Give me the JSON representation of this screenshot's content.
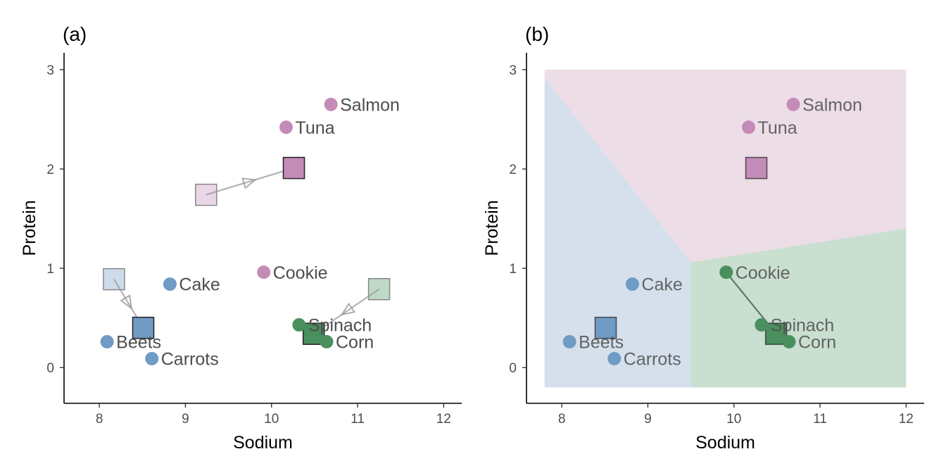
{
  "chart_data": [
    {
      "type": "scatter",
      "panel_label": "(a)",
      "xlabel": "Sodium",
      "ylabel": "Protein",
      "xlim": [
        7.59,
        12.21
      ],
      "ylim": [
        -0.36,
        3.17
      ],
      "xticks": [
        "8",
        "9",
        "10",
        "11",
        "12"
      ],
      "yticks": [
        "0",
        "1",
        "2",
        "3"
      ],
      "grid": false,
      "points": [
        {
          "label": "Salmon",
          "x": 10.69,
          "y": 2.65,
          "cluster": "purple"
        },
        {
          "label": "Tuna",
          "x": 10.17,
          "y": 2.42,
          "cluster": "purple"
        },
        {
          "label": "Cookie",
          "x": 9.91,
          "y": 0.96,
          "cluster": "purple"
        },
        {
          "label": "Cake",
          "x": 8.82,
          "y": 0.84,
          "cluster": "blue"
        },
        {
          "label": "Beets",
          "x": 8.09,
          "y": 0.26,
          "cluster": "blue"
        },
        {
          "label": "Carrots",
          "x": 8.61,
          "y": 0.09,
          "cluster": "blue"
        },
        {
          "label": "Spinach",
          "x": 10.32,
          "y": 0.43,
          "cluster": "green"
        },
        {
          "label": "Corn",
          "x": 10.64,
          "y": 0.26,
          "cluster": "green"
        }
      ],
      "centroids": [
        {
          "cluster": "purple",
          "old": [
            9.24,
            1.74
          ],
          "new": [
            10.26,
            2.01
          ]
        },
        {
          "cluster": "blue",
          "old": [
            8.17,
            0.89
          ],
          "new": [
            8.51,
            0.4
          ]
        },
        {
          "cluster": "green",
          "old": [
            11.25,
            0.79
          ],
          "new": [
            10.49,
            0.34
          ]
        }
      ]
    },
    {
      "type": "scatter",
      "panel_label": "(b)",
      "xlabel": "Sodium",
      "ylabel": "Protein",
      "xlim": [
        7.59,
        12.21
      ],
      "ylim": [
        -0.36,
        3.17
      ],
      "xticks": [
        "8",
        "9",
        "10",
        "11",
        "12"
      ],
      "yticks": [
        "0",
        "1",
        "2",
        "3"
      ],
      "grid": false,
      "points": [
        {
          "label": "Salmon",
          "x": 10.69,
          "y": 2.65,
          "cluster": "purple"
        },
        {
          "label": "Tuna",
          "x": 10.17,
          "y": 2.42,
          "cluster": "purple"
        },
        {
          "label": "Cookie",
          "x": 9.91,
          "y": 0.96,
          "cluster": "green"
        },
        {
          "label": "Cake",
          "x": 8.82,
          "y": 0.84,
          "cluster": "blue"
        },
        {
          "label": "Beets",
          "x": 8.09,
          "y": 0.26,
          "cluster": "blue"
        },
        {
          "label": "Carrots",
          "x": 8.61,
          "y": 0.09,
          "cluster": "blue"
        },
        {
          "label": "Spinach",
          "x": 10.32,
          "y": 0.43,
          "cluster": "green"
        },
        {
          "label": "Corn",
          "x": 10.64,
          "y": 0.26,
          "cluster": "green"
        }
      ],
      "centroids": [
        {
          "cluster": "purple",
          "new": [
            10.26,
            2.01
          ]
        },
        {
          "cluster": "blue",
          "new": [
            8.51,
            0.4
          ]
        },
        {
          "cluster": "green",
          "new": [
            10.49,
            0.34
          ]
        }
      ],
      "reassigned_link": {
        "from": "Cookie",
        "to_cluster": "green"
      },
      "regions": [
        {
          "cluster": "blue",
          "polygon": [
            [
              7.8,
              -0.2
            ],
            [
              7.8,
              2.92
            ],
            [
              9.5,
              1.06
            ],
            [
              9.5,
              -0.2
            ]
          ]
        },
        {
          "cluster": "purple",
          "polygon": [
            [
              7.8,
              2.92
            ],
            [
              7.8,
              3.0
            ],
            [
              12.0,
              3.0
            ],
            [
              12.0,
              1.4
            ],
            [
              9.5,
              1.06
            ]
          ]
        },
        {
          "cluster": "green",
          "polygon": [
            [
              9.5,
              -0.2
            ],
            [
              9.5,
              1.06
            ],
            [
              12.0,
              1.4
            ],
            [
              12.0,
              -0.2
            ]
          ]
        }
      ]
    }
  ],
  "colors": {
    "blue": "#6f9bc4",
    "purple": "#c48bb7",
    "green": "#4a8f5e",
    "region_blue": "#d5e0ec",
    "region_purple": "#ecdde7",
    "region_green": "#c9dfd0",
    "text": "#4d4d4d",
    "arrow": "#999999"
  }
}
